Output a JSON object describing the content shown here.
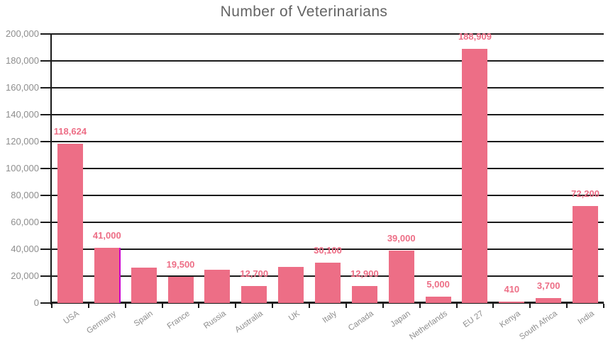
{
  "chart_data": {
    "type": "bar",
    "title": "Number of Veterinarians",
    "categories": [
      "USA",
      "Germany",
      "Spain",
      "France",
      "Russia",
      "Australia",
      "UK",
      "Italy",
      "Canada",
      "Japan",
      "Netherlands",
      "EU 27",
      "Kenya",
      "South Africa",
      "India"
    ],
    "values": [
      118624,
      41000,
      26500,
      19500,
      24500,
      12700,
      27000,
      30100,
      12900,
      39000,
      5000,
      188909,
      410,
      3700,
      72200
    ],
    "value_labels": [
      "118,624",
      "41,000",
      "",
      "19,500",
      "",
      "12,700",
      "",
      "30,100",
      "12,900",
      "39,000",
      "5,000",
      "188,909",
      "410",
      "3,700",
      "72,200"
    ],
    "unlabeled_values_estimated_from_gridlines": [
      "Spain",
      "Russia",
      "UK"
    ],
    "xlabel": "",
    "ylabel": "",
    "ylim": [
      0,
      200000
    ],
    "ytick_step": 20000,
    "ytick_labels": [
      "0",
      "20,000",
      "40,000",
      "60,000",
      "80,000",
      "100,000",
      "120,000",
      "140,000",
      "160,000",
      "180,000",
      "200,000"
    ],
    "grid": "horizontal gridlines on, black",
    "legend": "none",
    "colors": {
      "bar": "#ed6e86",
      "value_label": "#ed6e86",
      "title": "#646464",
      "tick_label": "#8e8e8e",
      "grid": "#1a1a1a",
      "background": "#ffffff",
      "marker_line": "#cc00cc"
    },
    "annotations": [
      {
        "name": "vertical-marker-line",
        "at_category": "Germany",
        "position": "right edge of bar, from bar top to x-axis",
        "color": "#cc00cc"
      }
    ]
  }
}
